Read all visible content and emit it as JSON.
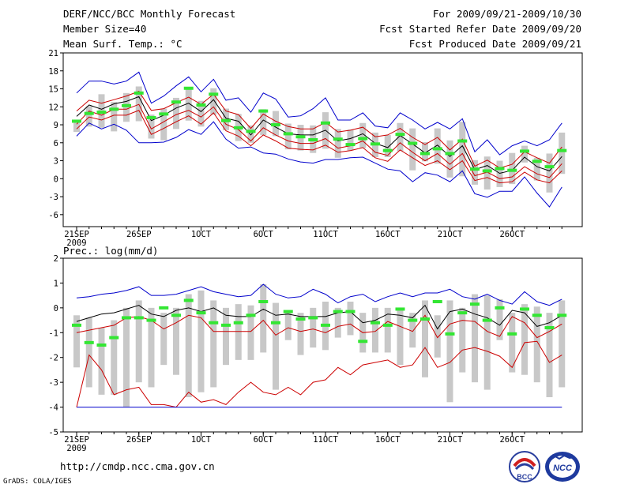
{
  "header": {
    "title": "DERF/NCC/BCC Monthly Forecast",
    "member_size": "Member Size=40",
    "variable": "Mean Surf. Temp.: °C",
    "forecast_period": "For 2009/09/21-2009/10/30",
    "started_refer": "Fcst Started Refer Date 2009/09/20",
    "produced": "Fcst Produced Date 2009/09/21"
  },
  "footer": {
    "url": "http://cmdp.ncc.cma.gov.cn",
    "grads_credit": "GrADS: COLA/IGES",
    "logo_bcc": "BCC",
    "logo_ncc": "NCC"
  },
  "x_labels": [
    {
      "day": 0,
      "label": "21SEP",
      "sub": "2009"
    },
    {
      "day": 5,
      "label": "26SEP"
    },
    {
      "day": 10,
      "label": "1OCT"
    },
    {
      "day": 15,
      "label": "6OCT"
    },
    {
      "day": 20,
      "label": "11OCT"
    },
    {
      "day": 25,
      "label": "16OCT"
    },
    {
      "day": 30,
      "label": "21OCT"
    },
    {
      "day": 35,
      "label": "26OCT"
    }
  ],
  "colors": {
    "max_min": "#0000cc",
    "band": "#cc0000",
    "mean": "#000000",
    "box": "#c8c8c8",
    "marker": "#33e633"
  },
  "chart_data": [
    {
      "id": "temperature",
      "type": "line",
      "title": "Mean Surf. Temp.: °C",
      "xlabel": "",
      "ylabel": "",
      "ylim": [
        -8,
        21
      ],
      "yticks": [
        21,
        18,
        15,
        12,
        9,
        6,
        3,
        0,
        -3,
        -6
      ],
      "days": 40,
      "series": [
        {
          "name": "max",
          "color": "#0000cc",
          "values": [
            14.3,
            16.3,
            16.3,
            15.8,
            16.3,
            17.8,
            12.6,
            13.8,
            15.5,
            17.0,
            14.5,
            16.6,
            13.1,
            13.5,
            11.1,
            14.3,
            13.3,
            10.3,
            10.5,
            11.7,
            13.5,
            9.8,
            9.8,
            11.0,
            8.8,
            8.5,
            11.0,
            9.8,
            8.3,
            9.4,
            8.3,
            10.0,
            4.5,
            6.5,
            4.0,
            5.5,
            6.3,
            5.5,
            6.5,
            9.3
          ]
        },
        {
          "name": "upper",
          "color": "#cc0000",
          "values": [
            11.3,
            13.1,
            12.6,
            13.2,
            13.8,
            14.6,
            11.4,
            11.7,
            12.7,
            13.6,
            12.4,
            14.1,
            11.3,
            10.7,
            8.4,
            10.8,
            9.6,
            8.7,
            8.3,
            8.3,
            9.4,
            7.8,
            8.1,
            8.6,
            7.0,
            7.3,
            8.4,
            6.9,
            5.7,
            6.9,
            4.8,
            6.6,
            2.1,
            3.1,
            1.8,
            2.4,
            4.5,
            3.5,
            2.6,
            5.3
          ]
        },
        {
          "name": "mean",
          "color": "#000000",
          "values": [
            10.4,
            12.3,
            11.6,
            12.5,
            12.9,
            13.7,
            9.7,
            10.6,
            11.8,
            12.6,
            11.2,
            13.2,
            10.1,
            9.6,
            7.3,
            9.8,
            8.6,
            7.5,
            7.3,
            7.3,
            8.1,
            6.3,
            6.7,
            7.5,
            5.9,
            5.2,
            7.2,
            5.8,
            4.3,
            5.6,
            3.7,
            5.5,
            1.5,
            2.2,
            0.9,
            1.4,
            3.6,
            2.0,
            1.3,
            3.7
          ]
        },
        {
          "name": "lower",
          "color": "#cc0000",
          "values": [
            9.1,
            11.3,
            10.6,
            11.6,
            11.6,
            12.4,
            8.3,
            9.5,
            10.7,
            11.4,
            10.3,
            12.0,
            9.1,
            8.2,
            6.3,
            8.5,
            7.3,
            6.3,
            5.9,
            5.9,
            6.7,
            5.1,
            5.5,
            6.3,
            4.4,
            3.9,
            6.0,
            4.4,
            3.0,
            4.2,
            2.4,
            4.2,
            0.5,
            1.1,
            0.0,
            0.3,
            2.0,
            0.8,
            0.2,
            2.5
          ]
        },
        {
          "name": "low-red",
          "color": "#cc0000",
          "values": [
            8.3,
            10.3,
            9.8,
            10.6,
            10.6,
            11.4,
            7.4,
            8.4,
            9.5,
            10.5,
            9.1,
            11.0,
            8.0,
            7.1,
            5.5,
            7.3,
            6.3,
            5.1,
            4.9,
            4.8,
            5.6,
            4.4,
            4.7,
            5.2,
            3.5,
            2.9,
            4.8,
            3.5,
            2.2,
            3.0,
            1.5,
            3.0,
            -0.3,
            0.2,
            -0.7,
            -0.5,
            1.1,
            -0.2,
            -0.7,
            1.3
          ]
        },
        {
          "name": "min",
          "color": "#0000cc",
          "values": [
            7.1,
            9.3,
            8.3,
            9.1,
            8.1,
            6.0,
            6.0,
            6.1,
            6.9,
            8.2,
            7.4,
            9.5,
            6.6,
            5.1,
            5.3,
            4.3,
            4.1,
            3.3,
            2.8,
            2.6,
            3.2,
            3.2,
            3.5,
            3.6,
            2.6,
            1.6,
            1.3,
            -0.5,
            1.0,
            0.6,
            -0.5,
            1.3,
            -2.5,
            -3.1,
            -2.1,
            -2.1,
            0.3,
            -2.4,
            -4.7,
            -1.4
          ]
        }
      ],
      "boxes": {
        "high": [
          9.6,
          12.1,
          14.1,
          12.8,
          14.3,
          15.4,
          10.7,
          11.7,
          13.5,
          15.1,
          13.0,
          15.1,
          11.7,
          10.8,
          8.9,
          11.6,
          11.3,
          9.2,
          9.0,
          8.9,
          11.1,
          8.3,
          8.2,
          9.3,
          7.7,
          7.3,
          9.3,
          8.4,
          6.1,
          8.4,
          6.4,
          9.5,
          3.1,
          3.7,
          3.0,
          4.3,
          5.5,
          3.5,
          4.2,
          7.7
        ],
        "low": [
          7.8,
          8.7,
          8.5,
          7.9,
          9.5,
          9.6,
          6.7,
          6.4,
          8.3,
          9.7,
          8.7,
          10.7,
          8.1,
          6.3,
          6.0,
          7.3,
          7.1,
          4.9,
          4.7,
          4.3,
          5.0,
          3.5,
          4.7,
          5.1,
          3.6,
          3.6,
          4.6,
          1.4,
          2.9,
          2.5,
          0.2,
          0.4,
          -1.0,
          -1.8,
          -1.4,
          -0.9,
          2.7,
          -0.3,
          -2.3,
          0.8
        ]
      },
      "markers": [
        9.6,
        10.9,
        11.1,
        11.6,
        12.2,
        14.3,
        10.2,
        10.8,
        12.8,
        15.1,
        12.3,
        14.1,
        9.7,
        8.5,
        7.9,
        11.3,
        9.0,
        7.5,
        7.0,
        6.5,
        9.3,
        6.6,
        5.7,
        6.7,
        5.8,
        4.7,
        7.4,
        5.9,
        4.2,
        5.0,
        4.2,
        6.3,
        1.6,
        1.3,
        1.7,
        1.4,
        4.6,
        2.9,
        2.0,
        4.7
      ]
    },
    {
      "id": "precipitation",
      "type": "line",
      "title": "Prec.: log(mm/d)",
      "xlabel": "",
      "ylabel": "",
      "ylim": [
        -5,
        2
      ],
      "yticks": [
        2,
        1,
        0,
        -1,
        -2,
        -3,
        -4,
        -5
      ],
      "days": 40,
      "series": [
        {
          "name": "max",
          "color": "#0000cc",
          "values": [
            0.4,
            0.45,
            0.55,
            0.6,
            0.7,
            0.85,
            0.5,
            0.5,
            0.55,
            0.7,
            0.85,
            0.65,
            0.55,
            0.45,
            0.5,
            0.95,
            0.55,
            0.4,
            0.45,
            0.75,
            0.55,
            0.2,
            0.45,
            0.55,
            0.25,
            0.45,
            0.6,
            0.45,
            0.6,
            0.6,
            0.75,
            0.45,
            0.35,
            0.55,
            0.3,
            0.15,
            0.65,
            0.25,
            0.1,
            0.35
          ]
        },
        {
          "name": "mean",
          "color": "#000000",
          "values": [
            -0.55,
            -0.4,
            -0.25,
            -0.2,
            -0.05,
            0.1,
            -0.25,
            -0.35,
            -0.1,
            0.0,
            -0.15,
            0.0,
            -0.3,
            -0.35,
            -0.35,
            -0.05,
            -0.3,
            -0.25,
            -0.35,
            -0.35,
            -0.35,
            -0.2,
            -0.15,
            -0.6,
            -0.5,
            -0.25,
            -0.3,
            -0.4,
            0.1,
            -0.85,
            -0.15,
            -0.05,
            -0.25,
            -0.4,
            -0.7,
            -0.1,
            -0.2,
            -0.75,
            -0.6,
            -0.3
          ]
        },
        {
          "name": "upper",
          "color": "#cc0000",
          "values": [
            -1.0,
            -0.9,
            -0.8,
            -0.7,
            -0.4,
            -0.35,
            -0.5,
            -0.85,
            -0.6,
            -0.3,
            -0.4,
            -0.95,
            -0.95,
            -0.95,
            -0.95,
            -0.5,
            -1.1,
            -0.8,
            -0.95,
            -0.85,
            -1.0,
            -0.75,
            -0.65,
            -1.0,
            -0.95,
            -0.55,
            -0.75,
            -0.95,
            -0.3,
            -1.2,
            -0.65,
            -0.5,
            -0.55,
            -0.95,
            -1.15,
            -0.35,
            -0.6,
            -1.2,
            -0.95,
            -0.65
          ]
        },
        {
          "name": "lower",
          "color": "#cc0000",
          "values": [
            -4.0,
            -1.9,
            -2.5,
            -3.5,
            -3.3,
            -3.2,
            -3.9,
            -3.9,
            -4.0,
            -3.4,
            -3.8,
            -3.7,
            -3.9,
            -3.4,
            -3.0,
            -3.4,
            -3.5,
            -3.2,
            -3.5,
            -3.0,
            -2.9,
            -2.4,
            -2.7,
            -2.3,
            -2.2,
            -2.1,
            -2.4,
            -2.3,
            -1.6,
            -2.4,
            -2.2,
            -1.7,
            -1.6,
            -1.75,
            -1.95,
            -2.4,
            -1.4,
            -1.35,
            -2.2,
            -1.9
          ]
        },
        {
          "name": "min",
          "color": "#0000cc",
          "values": [
            -4,
            -4,
            -4,
            -4,
            -4,
            -4,
            -4,
            -4,
            -4,
            -4,
            -4,
            -4,
            -4,
            -4,
            -4,
            -4,
            -4,
            -4,
            -4,
            -4,
            -4,
            -4,
            -4,
            -4,
            -4,
            -4,
            -4,
            -4,
            -4,
            -4,
            -4,
            -4,
            -4,
            -4,
            -4,
            -4,
            -4,
            -4,
            -4,
            -4
          ]
        }
      ],
      "boxes": {
        "high": [
          -0.3,
          -0.4,
          -0.8,
          -0.5,
          0.0,
          0.3,
          0.0,
          -0.2,
          0.0,
          0.55,
          0.7,
          0.3,
          0.0,
          0.15,
          0.1,
          0.95,
          0.2,
          -0.2,
          -0.2,
          0.0,
          0.25,
          0.0,
          0.25,
          -0.2,
          0.0,
          0.0,
          0.0,
          -0.2,
          0.3,
          -0.3,
          0.3,
          0.0,
          0.55,
          0.5,
          0.35,
          -0.2,
          0.15,
          0.05,
          -0.2,
          0.3
        ],
        "low": [
          -2.4,
          -3.2,
          -3.5,
          -3.5,
          -4.0,
          -3.0,
          -3.2,
          -2.3,
          -2.7,
          -3.6,
          -3.4,
          -3.2,
          -2.3,
          -2.1,
          -2.1,
          -1.8,
          -3.3,
          -1.3,
          -1.9,
          -1.6,
          -1.7,
          -1.2,
          -1.1,
          -1.8,
          -1.8,
          -1.8,
          -2.3,
          -1.6,
          -2.8,
          -2.0,
          -3.8,
          -2.6,
          -3.0,
          -3.3,
          -1.3,
          -2.6,
          -2.7,
          -3.0,
          -3.6,
          -3.2
        ]
      },
      "markers": [
        -0.7,
        -1.4,
        -1.5,
        -1.2,
        -0.4,
        -0.4,
        -0.5,
        0.0,
        -0.3,
        0.3,
        -0.2,
        -0.6,
        -0.7,
        -0.6,
        -0.3,
        0.25,
        -0.6,
        -0.15,
        -0.45,
        -0.4,
        -0.7,
        -0.15,
        -0.15,
        -1.35,
        -0.6,
        -0.7,
        -0.05,
        -0.5,
        -0.45,
        0.25,
        -1.05,
        -0.2,
        0.15,
        -0.5,
        0.0,
        -1.05,
        -0.05,
        -0.3,
        -0.8,
        -0.3
      ]
    }
  ]
}
